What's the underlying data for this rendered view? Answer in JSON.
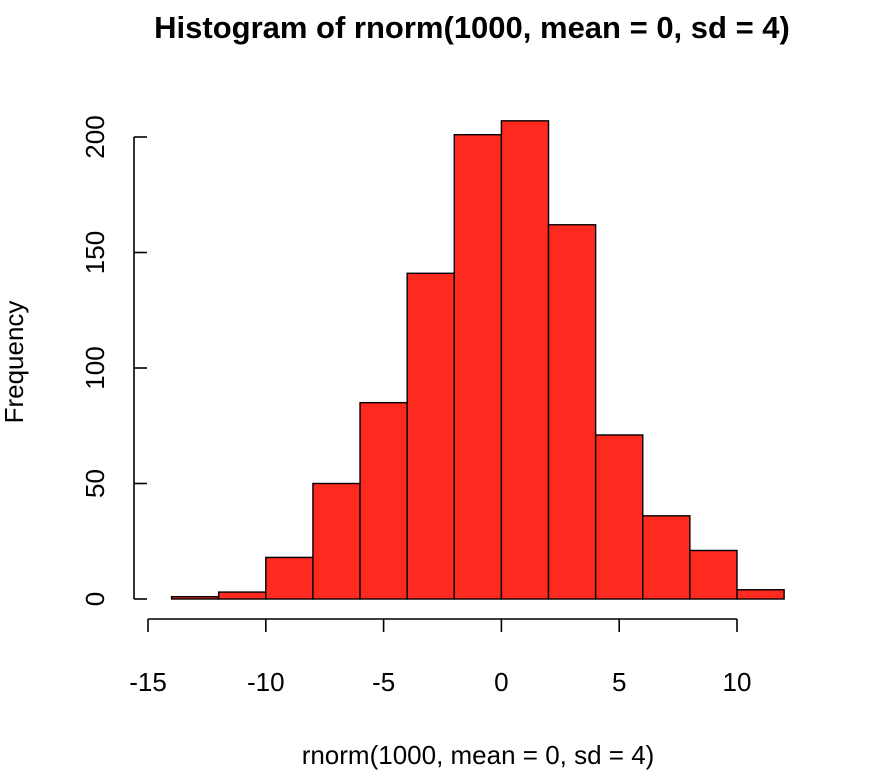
{
  "chart_data": {
    "type": "bar",
    "subtype": "histogram",
    "title": "Histogram of rnorm(1000, mean = 0, sd = 4)",
    "xlabel": "rnorm(1000, mean = 0, sd = 4)",
    "ylabel": "Frequency",
    "bins": [
      {
        "start": -14,
        "end": -12,
        "count": 1
      },
      {
        "start": -12,
        "end": -10,
        "count": 3
      },
      {
        "start": -10,
        "end": -8,
        "count": 18
      },
      {
        "start": -8,
        "end": -6,
        "count": 50
      },
      {
        "start": -6,
        "end": -4,
        "count": 85
      },
      {
        "start": -4,
        "end": -2,
        "count": 141
      },
      {
        "start": -2,
        "end": 0,
        "count": 201
      },
      {
        "start": 0,
        "end": 2,
        "count": 207
      },
      {
        "start": 2,
        "end": 4,
        "count": 162
      },
      {
        "start": 4,
        "end": 6,
        "count": 71
      },
      {
        "start": 6,
        "end": 8,
        "count": 36
      },
      {
        "start": 8,
        "end": 10,
        "count": 21
      },
      {
        "start": 10,
        "end": 12,
        "count": 4
      }
    ],
    "xlim": [
      -15,
      12
    ],
    "ylim": [
      0,
      210
    ],
    "x_ticks": [
      -15,
      -10,
      -5,
      0,
      5,
      10
    ],
    "x_tick_labels": [
      "-15",
      "-10",
      "-5",
      "0",
      "5",
      "10"
    ],
    "y_ticks": [
      0,
      50,
      100,
      150,
      200
    ],
    "y_tick_labels": [
      "0",
      "50",
      "100",
      "150",
      "200"
    ],
    "bar_color": "#ff2a1f",
    "grid": false,
    "legend": "none"
  }
}
